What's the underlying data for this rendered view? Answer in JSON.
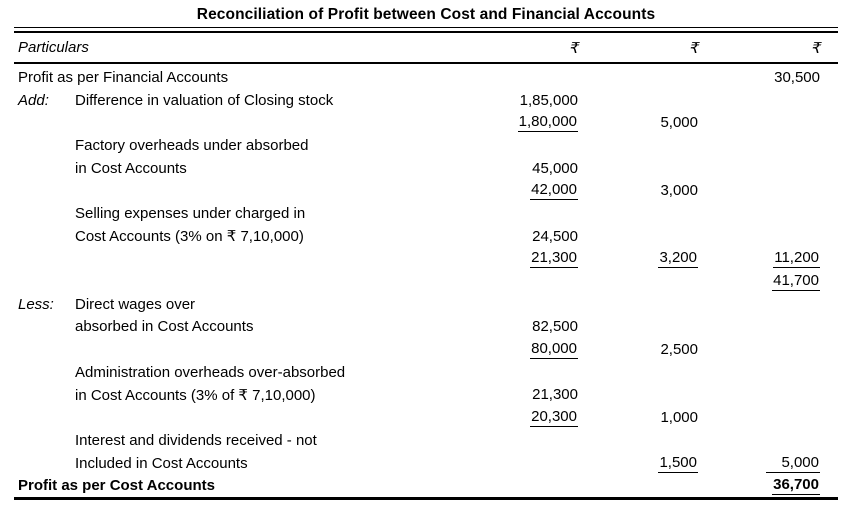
{
  "title": "Reconciliation of Profit between Cost and Financial Accounts",
  "header": {
    "particulars_label": "Particulars",
    "amount_columns": [
      "₹",
      "₹",
      "₹"
    ]
  },
  "rows": [
    {
      "full_width": true,
      "bold": false,
      "particulars": "Profit as per Financial Accounts",
      "c3": {
        "text": "30,500",
        "underline": false
      }
    },
    {
      "prefix": "Add:",
      "particulars": "Difference in valuation of Closing stock",
      "c1": {
        "text": "1,85,000",
        "underline": false
      }
    },
    {
      "c1": {
        "text": "1,80,000",
        "underline": true
      },
      "c2": {
        "text": "5,000",
        "underline": false
      }
    },
    {
      "particulars": "Factory overheads under absorbed"
    },
    {
      "particulars": "in Cost Accounts",
      "c1": {
        "text": "45,000",
        "underline": false
      }
    },
    {
      "c1": {
        "text": "42,000",
        "underline": true
      },
      "c2": {
        "text": "3,000",
        "underline": false
      }
    },
    {
      "particulars": "Selling expenses under charged in"
    },
    {
      "particulars": "Cost Accounts (3% on ₹ 7,10,000)",
      "c1": {
        "text": "24,500",
        "underline": false
      }
    },
    {
      "c1": {
        "text": "21,300",
        "underline": true
      },
      "c2": {
        "text": "3,200",
        "underline": true
      },
      "c3": {
        "text": "11,200",
        "underline": true
      }
    },
    {
      "c3": {
        "text": "41,700",
        "underline": true
      }
    },
    {
      "prefix": "Less:",
      "particulars": "Direct wages over"
    },
    {
      "particulars": "absorbed in Cost Accounts",
      "c1": {
        "text": "82,500",
        "underline": false
      }
    },
    {
      "c1": {
        "text": "80,000",
        "underline": true
      },
      "c2": {
        "text": "2,500",
        "underline": false
      }
    },
    {
      "particulars": "Administration overheads over-absorbed"
    },
    {
      "particulars": "in Cost Accounts (3% of ₹ 7,10,000)",
      "c1": {
        "text": "21,300",
        "underline": false
      }
    },
    {
      "c1": {
        "text": "20,300",
        "underline": true
      },
      "c2": {
        "text": "1,000",
        "underline": false
      }
    },
    {
      "particulars": "Interest and dividends received - not"
    },
    {
      "particulars": "Included in Cost Accounts",
      "c2": {
        "text": "1,500",
        "underline": true
      },
      "c3": {
        "text": "5,000",
        "underline": true,
        "wide_underline": true
      }
    },
    {
      "full_width": true,
      "bold": true,
      "particulars": "Profit as per Cost Accounts",
      "c3": {
        "text": "36,700",
        "underline": true
      }
    }
  ]
}
